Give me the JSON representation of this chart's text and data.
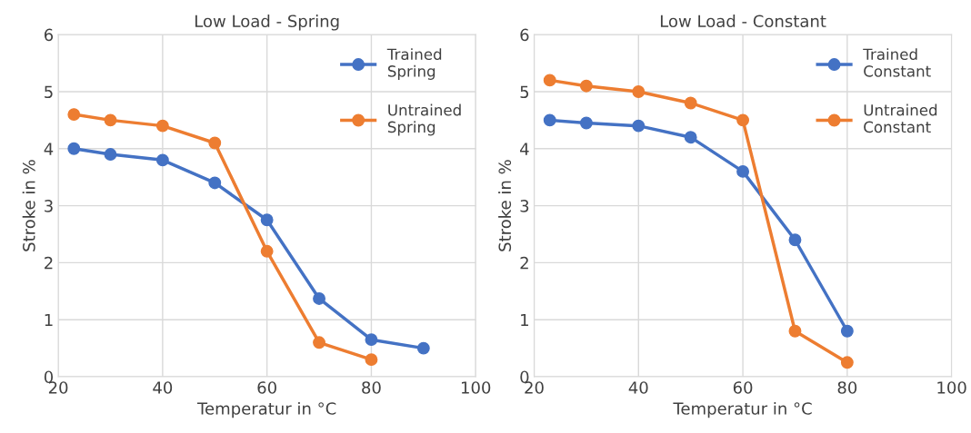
{
  "chart_data": [
    {
      "type": "line",
      "title": "Low Load - Spring",
      "xlabel": "Temperatur in °C",
      "ylabel": "Stroke in %",
      "xlim": [
        20,
        100
      ],
      "xticks": [
        20,
        40,
        60,
        80,
        100
      ],
      "ylim": [
        0,
        6
      ],
      "yticks": [
        0,
        1,
        2,
        3,
        4,
        5,
        6
      ],
      "grid": true,
      "legend": "top right",
      "marker": "circle",
      "series": [
        {
          "name": "Trained\nSpring",
          "color": "#4472c4",
          "x": [
            23,
            30,
            40,
            50,
            60,
            70,
            80,
            90
          ],
          "values": [
            4.0,
            3.9,
            3.8,
            3.4,
            2.75,
            1.37,
            0.65,
            0.5
          ]
        },
        {
          "name": "Untrained\nSpring",
          "color": "#ed7d31",
          "x": [
            23,
            30,
            40,
            50,
            60,
            70,
            80
          ],
          "values": [
            4.6,
            4.5,
            4.4,
            4.1,
            2.2,
            0.6,
            0.3
          ]
        }
      ]
    },
    {
      "type": "line",
      "title": "Low Load - Constant",
      "xlabel": "Temperatur in °C",
      "ylabel": "Stroke in %",
      "xlim": [
        20,
        100
      ],
      "xticks": [
        20,
        40,
        60,
        80,
        100
      ],
      "ylim": [
        0,
        6
      ],
      "yticks": [
        0,
        1,
        2,
        3,
        4,
        5,
        6
      ],
      "grid": true,
      "legend": "top right",
      "marker": "circle",
      "series": [
        {
          "name": "Trained\nConstant",
          "color": "#4472c4",
          "x": [
            23,
            30,
            40,
            50,
            60,
            70,
            80
          ],
          "values": [
            4.5,
            4.45,
            4.4,
            4.2,
            3.6,
            2.4,
            0.8
          ]
        },
        {
          "name": "Untrained\nConstant",
          "color": "#ed7d31",
          "x": [
            23,
            30,
            40,
            50,
            60,
            70,
            80
          ],
          "values": [
            5.2,
            5.1,
            5.0,
            4.8,
            4.5,
            0.8,
            0.25
          ]
        }
      ]
    }
  ]
}
